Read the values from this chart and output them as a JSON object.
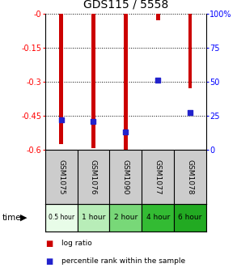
{
  "title": "GDS115 / 5558",
  "samples": [
    "GSM1075",
    "GSM1076",
    "GSM1090",
    "GSM1077",
    "GSM1078"
  ],
  "time_labels": [
    "0.5 hour",
    "1 hour",
    "2 hour",
    "4 hour",
    "6 hour"
  ],
  "time_colors": [
    "#e8fce8",
    "#b8edb8",
    "#78d878",
    "#33bb33",
    "#22aa22"
  ],
  "log_ratios": [
    -0.575,
    -0.595,
    -0.6,
    -0.03,
    -0.33
  ],
  "percentile_ranks": [
    22,
    21,
    13,
    51,
    27
  ],
  "bar_color": "#cc0000",
  "dot_color": "#2222cc",
  "ylim_left": [
    -0.6,
    0.0
  ],
  "ylim_right": [
    0,
    100
  ],
  "yticks_left": [
    0.0,
    -0.15,
    -0.3,
    -0.45,
    -0.6
  ],
  "ytick_labels_left": [
    "-0",
    "-0.15",
    "-0.3",
    "-0.45",
    "-0.6"
  ],
  "yticks_right": [
    0,
    25,
    50,
    75,
    100
  ],
  "ytick_labels_right": [
    "0",
    "25",
    "50",
    "75",
    "100%"
  ],
  "legend_log_ratio": "log ratio",
  "legend_percentile": "percentile rank within the sample",
  "time_label": "time",
  "bar_width": 0.12
}
